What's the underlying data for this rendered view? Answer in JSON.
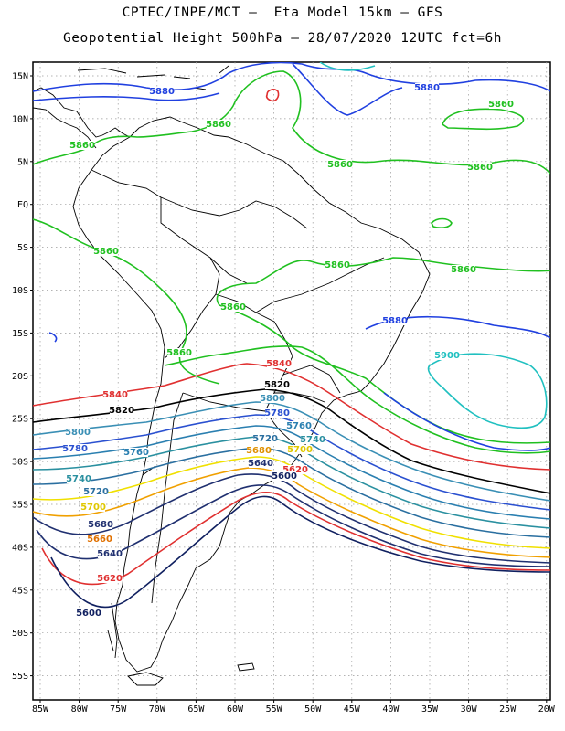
{
  "header": {
    "line1": "CPTEC/INPE/MCT –  Eta Model 15km – GFS",
    "line2": "Geopotential Height 500hPa – 28/07/2020 12UTC fct=6h"
  },
  "map": {
    "lat_labels": [
      "15N",
      "10N",
      "5N",
      "EQ",
      "5S",
      "10S",
      "15S",
      "20S",
      "25S",
      "30S",
      "35S",
      "40S",
      "45S",
      "50S",
      "55S"
    ],
    "lon_labels": [
      "85W",
      "80W",
      "75W",
      "70W",
      "65W",
      "60W",
      "55W",
      "50W",
      "45W",
      "40W",
      "35W",
      "30W",
      "25W",
      "20W"
    ],
    "contour_colors": {
      "5900": "#20c0c0",
      "5880": "#2040e0",
      "5860": "#20c020",
      "5840": "#e03030",
      "5820": "#000000",
      "5800": "#3a8fb5",
      "5780": "#2a50d0",
      "5760": "#2a7fb0",
      "5740": "#2a90a0",
      "5720": "#2a6fa0",
      "5700": "#f0e000",
      "5680": "#f0a000",
      "5660": "#e07000",
      "5640": "#203070",
      "5620": "#e03030",
      "5600": "#102060"
    },
    "contour_labels": [
      {
        "text": "5880",
        "color": "#2040e0"
      },
      {
        "text": "5880",
        "color": "#2040e0"
      },
      {
        "text": "5860",
        "color": "#20c020"
      },
      {
        "text": "5860",
        "color": "#20c020"
      },
      {
        "text": "5860",
        "color": "#20c020"
      },
      {
        "text": "5860",
        "color": "#20c020"
      },
      {
        "text": "5860",
        "color": "#20c020"
      },
      {
        "text": "5860",
        "color": "#20c020"
      },
      {
        "text": "5860",
        "color": "#20c020"
      },
      {
        "text": "5860",
        "color": "#20c020"
      },
      {
        "text": "5860",
        "color": "#20c020"
      },
      {
        "text": "5860",
        "color": "#20c020"
      },
      {
        "text": "5880",
        "color": "#2040e0"
      },
      {
        "text": "5900",
        "color": "#20c0c0"
      },
      {
        "text": "5840",
        "color": "#e03030"
      },
      {
        "text": "5840",
        "color": "#e03030"
      },
      {
        "text": "5820",
        "color": "#000000"
      },
      {
        "text": "5820",
        "color": "#000000"
      },
      {
        "text": "5800",
        "color": "#3a8fb5"
      },
      {
        "text": "5800",
        "color": "#3a8fb5"
      },
      {
        "text": "5780",
        "color": "#2a50d0"
      },
      {
        "text": "5780",
        "color": "#2a50d0"
      },
      {
        "text": "5760",
        "color": "#2a7fb0"
      },
      {
        "text": "5760",
        "color": "#2a7fb0"
      },
      {
        "text": "5740",
        "color": "#2a90a0"
      },
      {
        "text": "5740",
        "color": "#2a90a0"
      },
      {
        "text": "5720",
        "color": "#2a6fa0"
      },
      {
        "text": "5720",
        "color": "#2a6fa0"
      },
      {
        "text": "5700",
        "color": "#e0c800"
      },
      {
        "text": "5700",
        "color": "#e0c800"
      },
      {
        "text": "5680",
        "color": "#e09000"
      },
      {
        "text": "5680",
        "color": "#203070"
      },
      {
        "text": "5660",
        "color": "#e07000"
      },
      {
        "text": "5640",
        "color": "#203070"
      },
      {
        "text": "5640",
        "color": "#203070"
      },
      {
        "text": "5620",
        "color": "#e03030"
      },
      {
        "text": "5620",
        "color": "#e03030"
      },
      {
        "text": "5600",
        "color": "#102060"
      },
      {
        "text": "5600",
        "color": "#102060"
      }
    ]
  }
}
